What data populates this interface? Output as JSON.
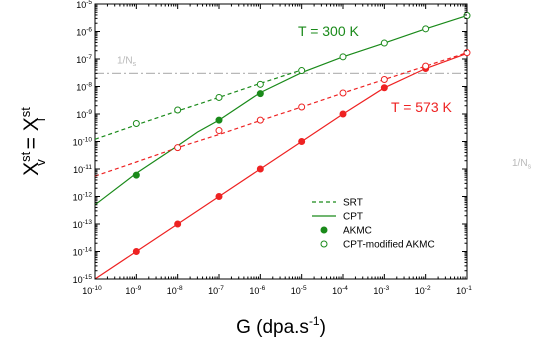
{
  "chart_data": {
    "type": "line",
    "xscale": "log",
    "yscale": "log",
    "xlim": [
      1e-10,
      0.1
    ],
    "ylim": [
      1e-15,
      1e-05
    ],
    "x_tick_exponents": [
      -10,
      -9,
      -8,
      -7,
      -6,
      -5,
      -4,
      -3,
      -2,
      -1
    ],
    "y_tick_exponents": [
      -15,
      -14,
      -13,
      -12,
      -11,
      -10,
      -9,
      -8,
      -7,
      -6,
      -5
    ],
    "tick_base": "10",
    "xlabel": {
      "main": "G (dpa.s",
      "sup": "-1",
      "close": ")"
    },
    "ylabel": {
      "base1": "X",
      "sup1": "st",
      "sub1": "v",
      "eq": " = ",
      "base2": "X",
      "sup2": "st",
      "sub2": "i"
    },
    "ref_line": {
      "value": 3e-08,
      "label_main": "1/N",
      "label_sub": "s",
      "color": "#b8b8b8",
      "style": "dash-dot"
    },
    "outside_label": {
      "main": "1/N",
      "sub": "s"
    },
    "annotations": [
      {
        "text": "T = 300 K",
        "color": "#1a8a1a"
      },
      {
        "text": "T = 573 K",
        "color": "#ee2222"
      }
    ],
    "colors": {
      "green": "#1a8a1a",
      "red": "#ee2222"
    },
    "series": [
      {
        "group": "300K",
        "kind": "SRT",
        "style": "dashed",
        "color": "#1a8a1a",
        "x": [
          1e-10,
          1e-09,
          1e-08,
          1e-07,
          1e-06,
          1e-05
        ],
        "y": [
          1.2e-10,
          4e-10,
          1.3e-09,
          4e-09,
          1.3e-08,
          4e-08
        ]
      },
      {
        "group": "300K",
        "kind": "CPT",
        "style": "solid",
        "color": "#1a8a1a",
        "x": [
          1e-10,
          1e-09,
          1e-08,
          3e-08,
          1e-07,
          1e-06,
          1e-05,
          0.0001,
          0.001,
          0.01,
          0.1
        ],
        "y": [
          5e-13,
          7e-12,
          7e-11,
          2.2e-10,
          6e-10,
          6e-09,
          3.2e-08,
          1.2e-07,
          3.8e-07,
          1.25e-06,
          3.8e-06
        ]
      },
      {
        "group": "300K",
        "kind": "AKMC",
        "marker": "filled",
        "color": "#1a8a1a",
        "x": [
          1e-09,
          1e-07,
          1e-06
        ],
        "y": [
          6e-12,
          6e-10,
          5.5e-09
        ]
      },
      {
        "group": "300K",
        "kind": "CPT-modified AKMC",
        "marker": "open",
        "color": "#1a8a1a",
        "x": [
          1e-09,
          1e-08,
          1e-07,
          1e-06,
          1e-05,
          0.0001,
          0.001,
          0.01,
          0.1
        ],
        "y": [
          4.5e-10,
          1.4e-09,
          4e-09,
          1.2e-08,
          3.8e-08,
          1.2e-07,
          3.8e-07,
          1.25e-06,
          3.8e-06
        ]
      },
      {
        "group": "573K",
        "kind": "SRT",
        "style": "dashed",
        "color": "#ee2222",
        "x": [
          1e-10,
          1e-09,
          1e-08,
          1e-07,
          1e-06,
          1e-05,
          0.0001,
          0.001,
          0.01,
          0.1
        ],
        "y": [
          5.5e-12,
          1.8e-11,
          6e-11,
          1.8e-10,
          5.8e-10,
          1.8e-09,
          5.8e-09,
          1.8e-08,
          5.5e-08,
          1.7e-07
        ]
      },
      {
        "group": "573K",
        "kind": "CPT",
        "style": "solid",
        "color": "#ee2222",
        "x": [
          1e-10,
          1e-09,
          1e-08,
          1e-07,
          1e-06,
          1e-05,
          0.0001,
          0.001,
          0.01,
          0.1
        ],
        "y": [
          1e-15,
          1e-14,
          1e-13,
          1e-12,
          1e-11,
          1e-10,
          1e-09,
          9e-09,
          4.5e-08,
          1.6e-07
        ]
      },
      {
        "group": "573K",
        "kind": "AKMC",
        "marker": "filled",
        "color": "#ee2222",
        "x": [
          1e-09,
          1e-08,
          1e-07,
          1e-06,
          1e-05,
          0.0001,
          0.001,
          0.01
        ],
        "y": [
          1e-14,
          1e-13,
          1e-12,
          1e-11,
          1e-10,
          1e-09,
          9e-09,
          4.5e-08
        ]
      },
      {
        "group": "573K",
        "kind": "CPT-modified AKMC",
        "marker": "open",
        "color": "#ee2222",
        "x": [
          1e-08,
          1e-07,
          1e-06,
          1e-05,
          0.0001,
          0.001,
          0.01,
          0.1
        ],
        "y": [
          6e-11,
          2.5e-10,
          6e-10,
          1.8e-09,
          5.8e-09,
          1.8e-08,
          5.5e-08,
          1.7e-07
        ]
      }
    ],
    "legend": [
      {
        "label": "SRT",
        "symbol": "dashed-line"
      },
      {
        "label": "CPT",
        "symbol": "solid-line"
      },
      {
        "label": "AKMC",
        "symbol": "filled-circle"
      },
      {
        "label": "CPT-modified AKMC",
        "symbol": "open-circle"
      }
    ],
    "legend_color": "#1a8a1a",
    "legend_position": "lower-right",
    "grid": false
  }
}
